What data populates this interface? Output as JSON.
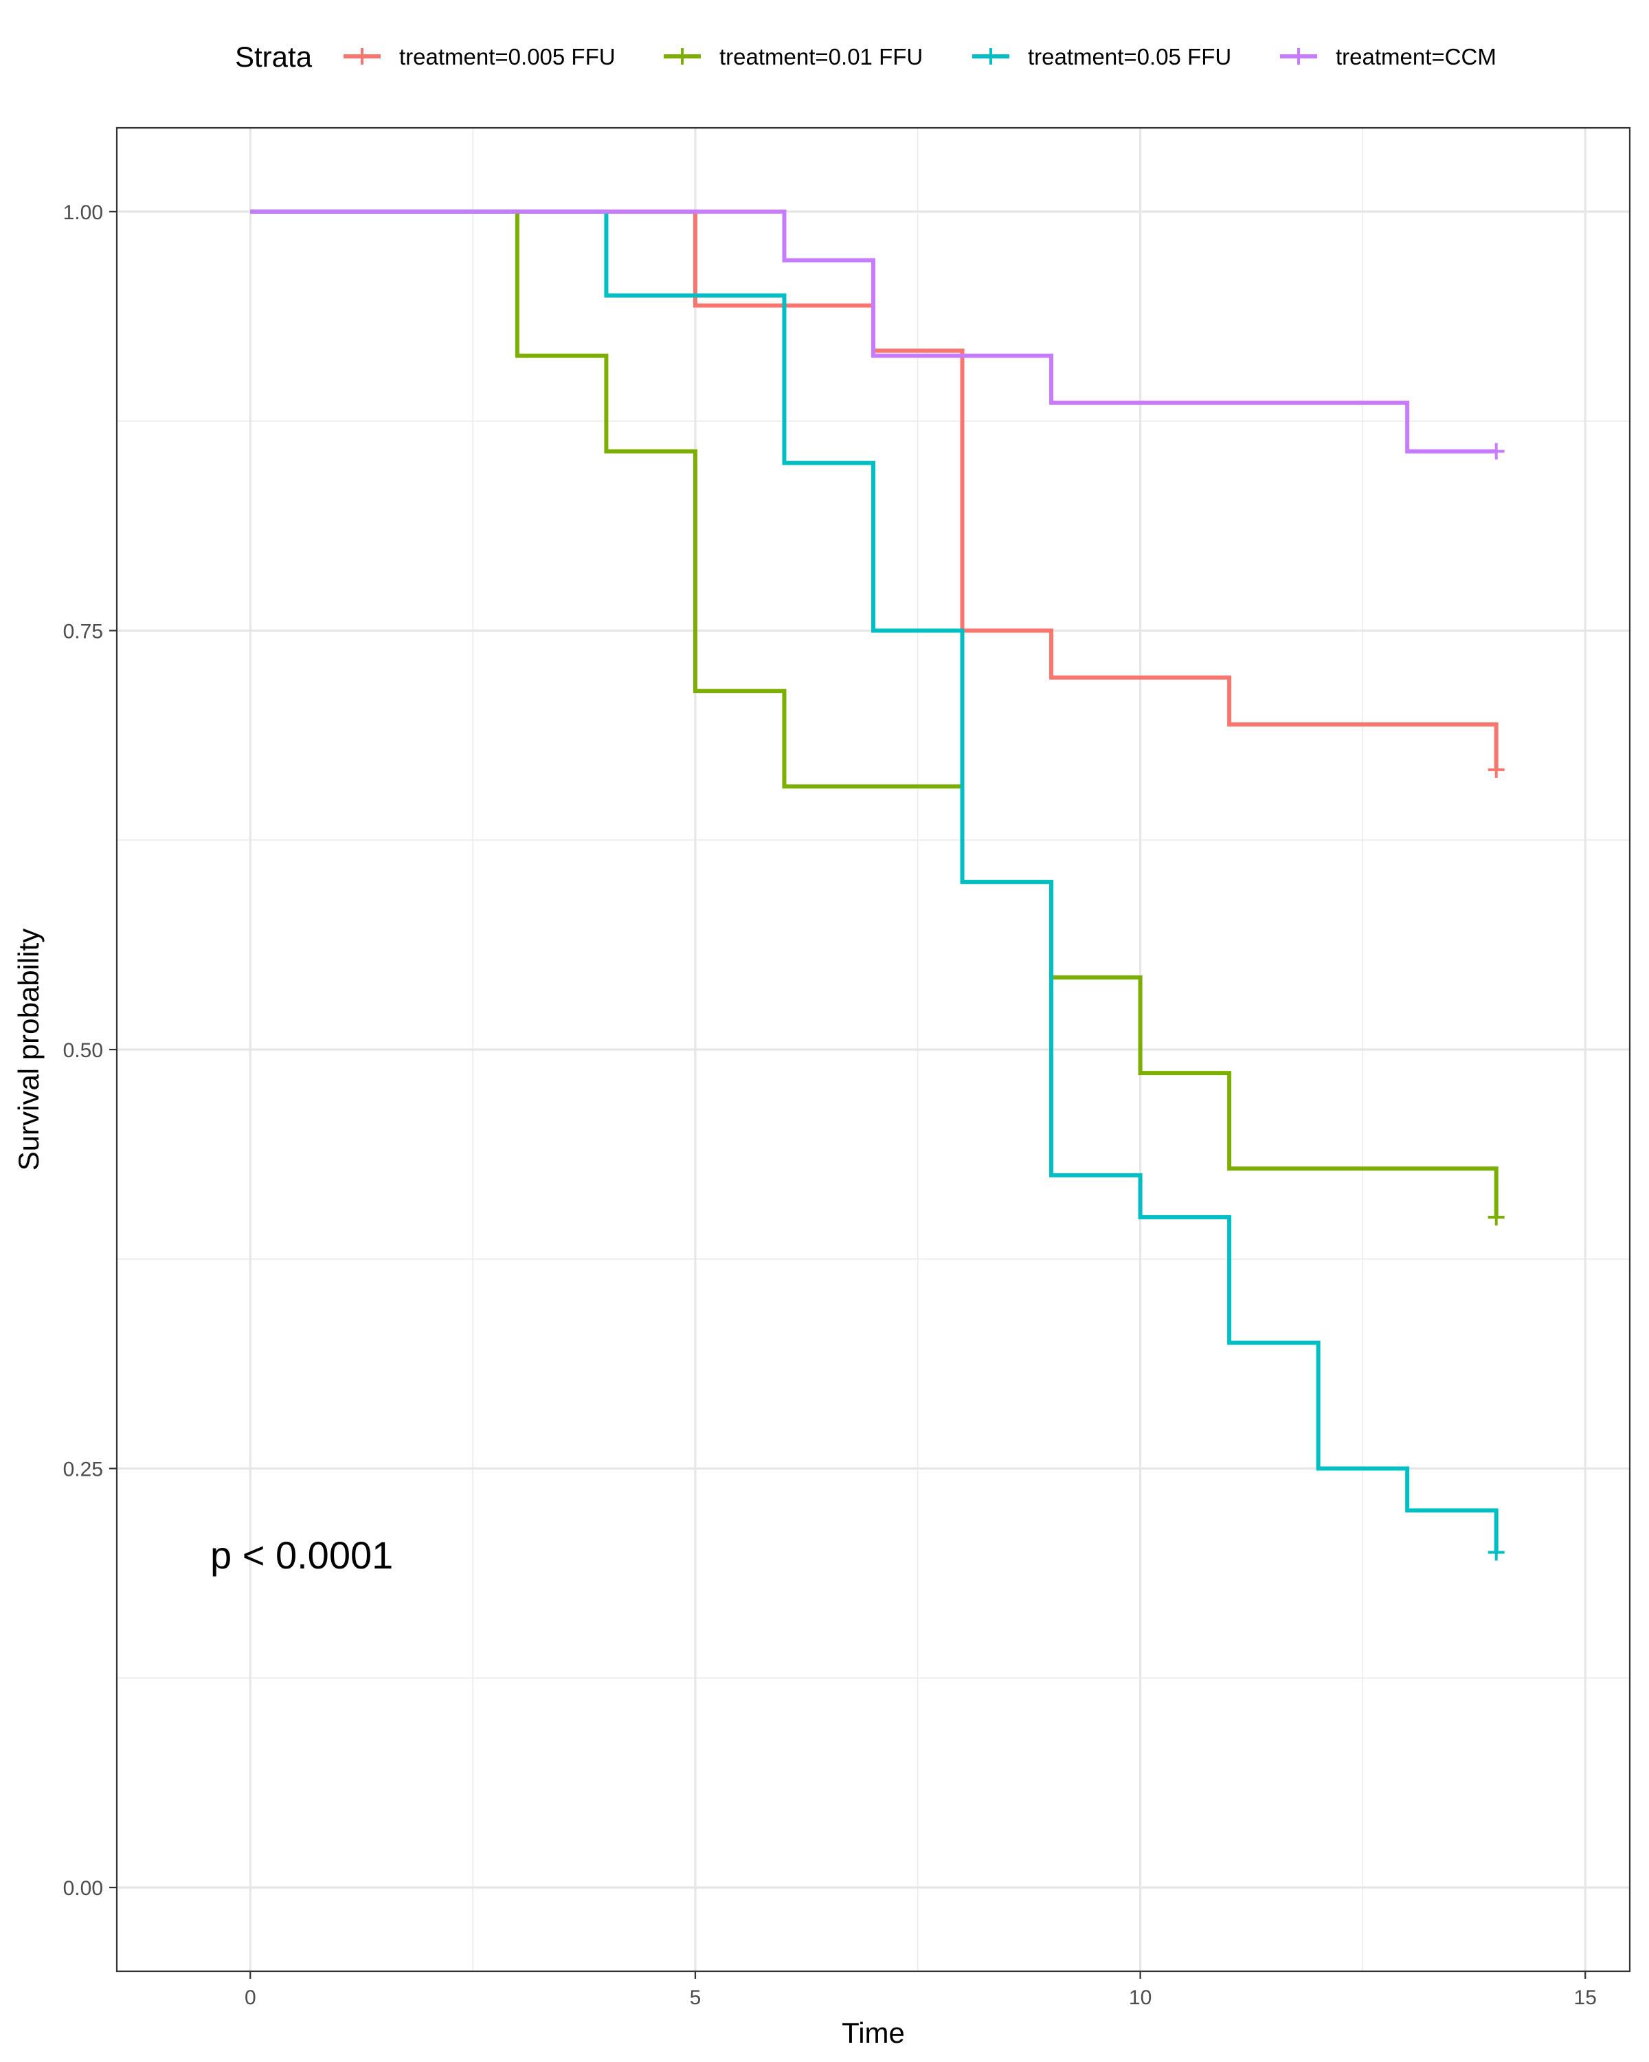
{
  "chart_data": {
    "type": "line",
    "step": true,
    "title": "",
    "xlabel": "Time",
    "ylabel": "Survival probability",
    "xlim": [
      -1.5,
      15.5
    ],
    "ylim": [
      -0.05,
      1.05
    ],
    "x_ticks": [
      0,
      5,
      10,
      15
    ],
    "x_tick_labels": [
      "0",
      "5",
      "10",
      "15"
    ],
    "y_ticks": [
      0,
      0.25,
      0.5,
      0.75,
      1.0
    ],
    "y_tick_labels": [
      "0.00",
      "0.25",
      "0.50",
      "0.75",
      "1.00"
    ],
    "grid": true,
    "legend": {
      "title": "Strata",
      "position": "top"
    },
    "annotation": "p < 0.0001",
    "series": [
      {
        "name": "treatment=0.005 FFU",
        "color": "#F8766D",
        "x": [
          0,
          5,
          7,
          8,
          9,
          11,
          14
        ],
        "y": [
          1.0,
          0.944,
          0.917,
          0.75,
          0.722,
          0.694,
          0.667
        ],
        "censor_x": [
          14
        ],
        "censor_y": [
          0.667
        ]
      },
      {
        "name": "treatment=0.01 FFU",
        "color": "#7CAE00",
        "x": [
          0,
          3,
          4,
          5,
          6,
          8,
          9,
          10,
          11,
          14
        ],
        "y": [
          1.0,
          0.914,
          0.857,
          0.714,
          0.657,
          0.6,
          0.543,
          0.486,
          0.429,
          0.4
        ],
        "censor_x": [
          14
        ],
        "censor_y": [
          0.4
        ]
      },
      {
        "name": "treatment=0.05 FFU",
        "color": "#00BFC4",
        "x": [
          0,
          4,
          6,
          7,
          8,
          9,
          10,
          11,
          12,
          13,
          14
        ],
        "y": [
          1.0,
          0.95,
          0.85,
          0.75,
          0.6,
          0.425,
          0.4,
          0.325,
          0.25,
          0.225,
          0.2
        ],
        "censor_x": [
          14
        ],
        "censor_y": [
          0.2
        ]
      },
      {
        "name": "treatment=CCM",
        "color": "#C77CFF",
        "x": [
          0,
          6,
          7,
          9,
          13,
          14
        ],
        "y": [
          1.0,
          0.971,
          0.914,
          0.886,
          0.857,
          0.857
        ],
        "censor_x": [
          14
        ],
        "censor_y": [
          0.857
        ]
      }
    ]
  }
}
